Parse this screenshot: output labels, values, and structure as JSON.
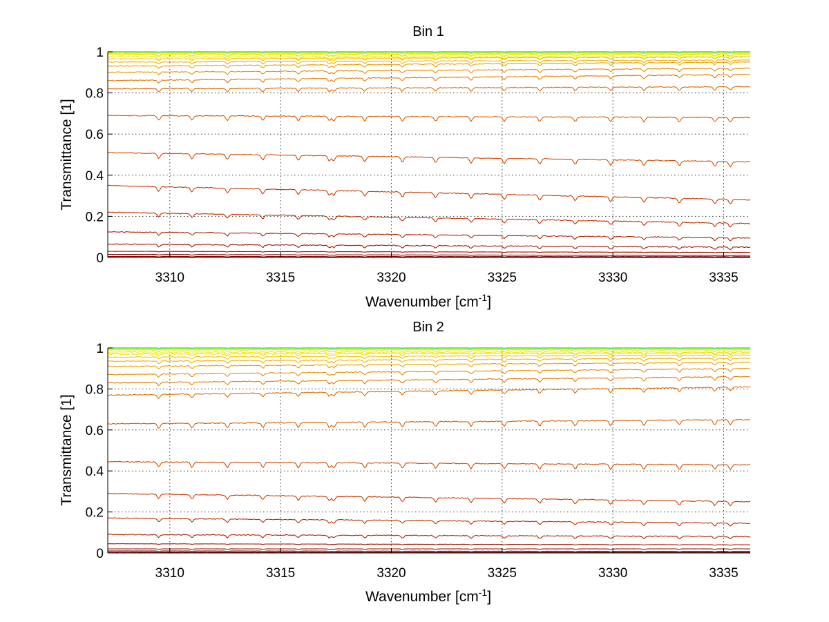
{
  "chart_data": [
    {
      "type": "line",
      "title": "Bin 1",
      "xlabel": "Wavenumber [cm",
      "xlabel_sup": "-1",
      "xlabel_end": "]",
      "ylabel": "Transmittance [1]",
      "xlim": [
        3307.2,
        3336.2
      ],
      "ylim": [
        0,
        1
      ],
      "xticks": [
        3310,
        3315,
        3320,
        3325,
        3330,
        3335
      ],
      "yticks": [
        0,
        0.2,
        0.4,
        0.6,
        0.8,
        1
      ],
      "ytick_labels": [
        "0",
        "0.2",
        "0.4",
        "0.6",
        "0.8",
        "1"
      ],
      "grid": true,
      "series_levels": [
        {
          "start": 1.0,
          "end": 1.0,
          "color": "#3ed8a0"
        },
        {
          "start": 0.995,
          "end": 0.995,
          "color": "#c8f000"
        },
        {
          "start": 0.99,
          "end": 0.99,
          "color": "#e8f000"
        },
        {
          "start": 0.985,
          "end": 0.985,
          "color": "#f5e800"
        },
        {
          "start": 0.975,
          "end": 0.975,
          "color": "#f6d800"
        },
        {
          "start": 0.965,
          "end": 0.975,
          "color": "#f4c400"
        },
        {
          "start": 0.95,
          "end": 0.96,
          "color": "#f0b000"
        },
        {
          "start": 0.93,
          "end": 0.95,
          "color": "#ec9e00"
        },
        {
          "start": 0.9,
          "end": 0.92,
          "color": "#e88c00"
        },
        {
          "start": 0.86,
          "end": 0.89,
          "color": "#e07a00"
        },
        {
          "start": 0.82,
          "end": 0.83,
          "color": "#dc6a00"
        },
        {
          "start": 0.69,
          "end": 0.68,
          "color": "#d85a00"
        },
        {
          "start": 0.51,
          "end": 0.465,
          "color": "#d24a00"
        },
        {
          "start": 0.35,
          "end": 0.28,
          "color": "#c83a00"
        },
        {
          "start": 0.22,
          "end": 0.165,
          "color": "#be2c00"
        },
        {
          "start": 0.125,
          "end": 0.095,
          "color": "#b02000"
        },
        {
          "start": 0.065,
          "end": 0.05,
          "color": "#a21600"
        },
        {
          "start": 0.03,
          "end": 0.025,
          "color": "#960e00"
        },
        {
          "start": 0.015,
          "end": 0.01,
          "color": "#8a0800"
        },
        {
          "start": 0.005,
          "end": 0.004,
          "color": "#800000"
        }
      ]
    },
    {
      "type": "line",
      "title": "Bin 2",
      "xlabel": "Wavenumber [cm",
      "xlabel_sup": "-1",
      "xlabel_end": "]",
      "ylabel": "Transmittance [1]",
      "xlim": [
        3307.2,
        3336.2
      ],
      "ylim": [
        0,
        1
      ],
      "xticks": [
        3310,
        3315,
        3320,
        3325,
        3330,
        3335
      ],
      "yticks": [
        0,
        0.2,
        0.4,
        0.6,
        0.8,
        1
      ],
      "ytick_labels": [
        "0",
        "0.2",
        "0.4",
        "0.6",
        "0.8",
        "1"
      ],
      "grid": true,
      "series_levels": [
        {
          "start": 1.0,
          "end": 1.0,
          "color": "#3ed8a0"
        },
        {
          "start": 0.995,
          "end": 0.995,
          "color": "#c8f000"
        },
        {
          "start": 0.99,
          "end": 0.99,
          "color": "#e8f000"
        },
        {
          "start": 0.98,
          "end": 0.98,
          "color": "#f5e800"
        },
        {
          "start": 0.97,
          "end": 0.975,
          "color": "#f6d800"
        },
        {
          "start": 0.955,
          "end": 0.965,
          "color": "#f4c400"
        },
        {
          "start": 0.935,
          "end": 0.95,
          "color": "#f0b000"
        },
        {
          "start": 0.91,
          "end": 0.93,
          "color": "#ec9e00"
        },
        {
          "start": 0.87,
          "end": 0.9,
          "color": "#e88c00"
        },
        {
          "start": 0.83,
          "end": 0.86,
          "color": "#e07a00"
        },
        {
          "start": 0.77,
          "end": 0.81,
          "color": "#dc6a00"
        },
        {
          "start": 0.63,
          "end": 0.65,
          "color": "#d85a00"
        },
        {
          "start": 0.445,
          "end": 0.43,
          "color": "#d24a00"
        },
        {
          "start": 0.29,
          "end": 0.25,
          "color": "#c83a00"
        },
        {
          "start": 0.17,
          "end": 0.145,
          "color": "#be2c00"
        },
        {
          "start": 0.09,
          "end": 0.08,
          "color": "#b02000"
        },
        {
          "start": 0.045,
          "end": 0.04,
          "color": "#a21600"
        },
        {
          "start": 0.02,
          "end": 0.02,
          "color": "#960e00"
        },
        {
          "start": 0.01,
          "end": 0.008,
          "color": "#8a0800"
        },
        {
          "start": 0.004,
          "end": 0.003,
          "color": "#800000"
        }
      ]
    }
  ]
}
